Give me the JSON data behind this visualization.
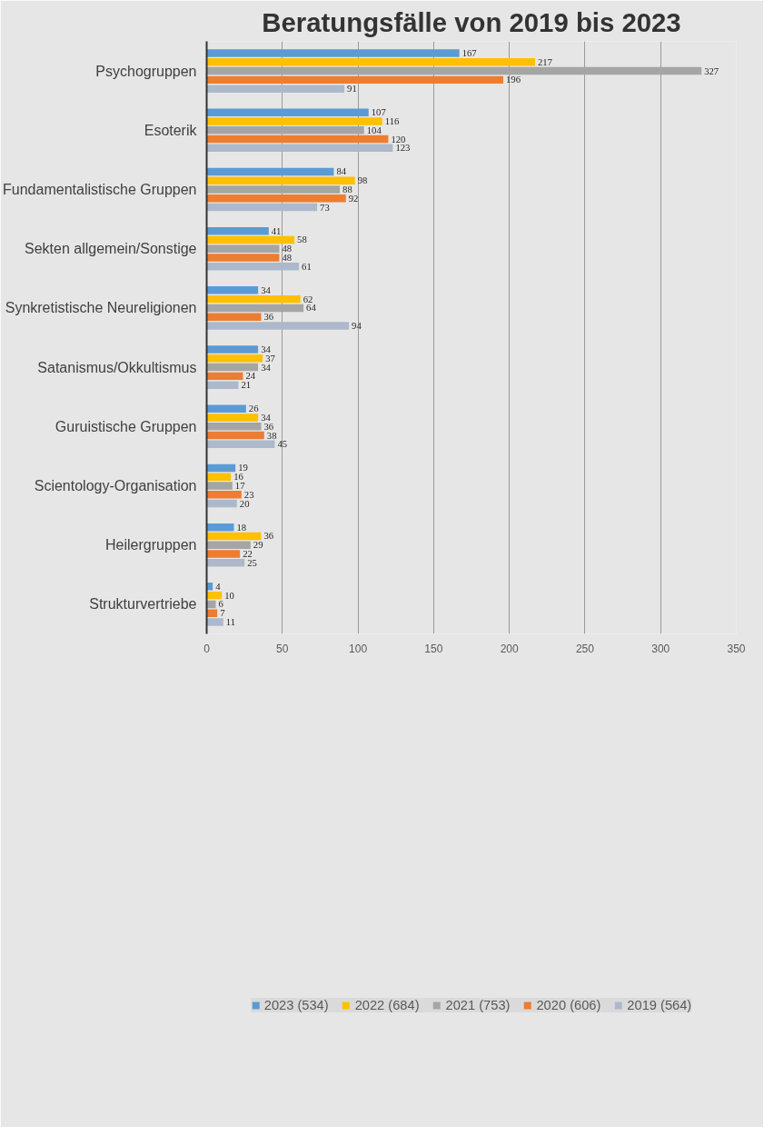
{
  "chart_data": {
    "type": "bar",
    "orientation": "horizontal",
    "title": "Beratungsfälle von 2019 bis 2023",
    "categories": [
      "Psychogruppen",
      "Esoterik",
      "Fundamentalistische Gruppen",
      "Sekten allgemein/Sonstige",
      "Synkretistische Neureligionen",
      "Satanismus/Okkultismus",
      "Guruistische Gruppen",
      "Scientology-Organisation",
      "Heilergruppen",
      "Strukturvertriebe"
    ],
    "series": [
      {
        "name": "2023 (534)",
        "color": "#5b9bd5",
        "values": [
          167,
          107,
          84,
          41,
          34,
          34,
          26,
          19,
          18,
          4
        ]
      },
      {
        "name": "2022 (684)",
        "color": "#ffc000",
        "values": [
          217,
          116,
          98,
          58,
          62,
          37,
          34,
          16,
          36,
          10
        ]
      },
      {
        "name": "2021 (753)",
        "color": "#a5a5a5",
        "values": [
          327,
          104,
          88,
          48,
          64,
          34,
          36,
          17,
          29,
          6
        ]
      },
      {
        "name": "2020 (606)",
        "color": "#ed7d31",
        "values": [
          196,
          120,
          92,
          48,
          36,
          24,
          38,
          23,
          22,
          7
        ]
      },
      {
        "name": "2019 (564)",
        "color": "#adb9ca",
        "values": [
          91,
          123,
          73,
          61,
          94,
          21,
          45,
          20,
          25,
          11
        ]
      }
    ],
    "xlim": [
      0,
      350
    ],
    "xticks": [
      0,
      50,
      100,
      150,
      200,
      250,
      300,
      350
    ],
    "grid": "x",
    "legend": "bottom",
    "data_labels": true
  }
}
